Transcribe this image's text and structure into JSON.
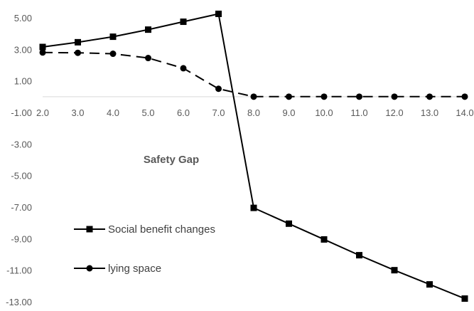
{
  "chart_data": {
    "type": "line",
    "title": "",
    "xlabel": "Safety Gap",
    "ylabel": "",
    "x": [
      2.0,
      3.0,
      4.0,
      5.0,
      6.0,
      7.0,
      8.0,
      9.0,
      10.0,
      11.0,
      12.0,
      13.0,
      14.0
    ],
    "x_tick_labels": [
      "2.0",
      "3.0",
      "4.0",
      "5.0",
      "6.0",
      "7.0",
      "8.0",
      "9.0",
      "10.0",
      "11.0",
      "12.0",
      "13.0",
      "14.0"
    ],
    "y_tick_labels": [
      "5.00",
      "3.00",
      "1.00",
      "-1.00",
      "-3.00",
      "-5.00",
      "-7.00",
      "-9.00",
      "-11.00",
      "-13.00"
    ],
    "y_ticks": [
      5,
      3,
      1,
      -1,
      -3,
      -5,
      -7,
      -9,
      -11,
      -13
    ],
    "xlim": [
      2.0,
      14.0
    ],
    "ylim": [
      -13,
      5
    ],
    "grid": false,
    "legend_position": "bottom-left",
    "series": [
      {
        "name": "Social benefit changes",
        "marker": "square",
        "line_style": "solid",
        "color": "#000000",
        "values": [
          3.15,
          3.45,
          3.8,
          4.25,
          4.75,
          5.25,
          -7.05,
          -8.05,
          -9.05,
          -10.05,
          -11.0,
          -11.9,
          -12.8
        ]
      },
      {
        "name": "lying space",
        "marker": "circle",
        "line_style": "dashed",
        "color": "#000000",
        "values": [
          2.8,
          2.78,
          2.72,
          2.45,
          1.8,
          0.5,
          0.0,
          0.0,
          0.0,
          0.0,
          0.0,
          0.0,
          0.0
        ]
      }
    ]
  }
}
